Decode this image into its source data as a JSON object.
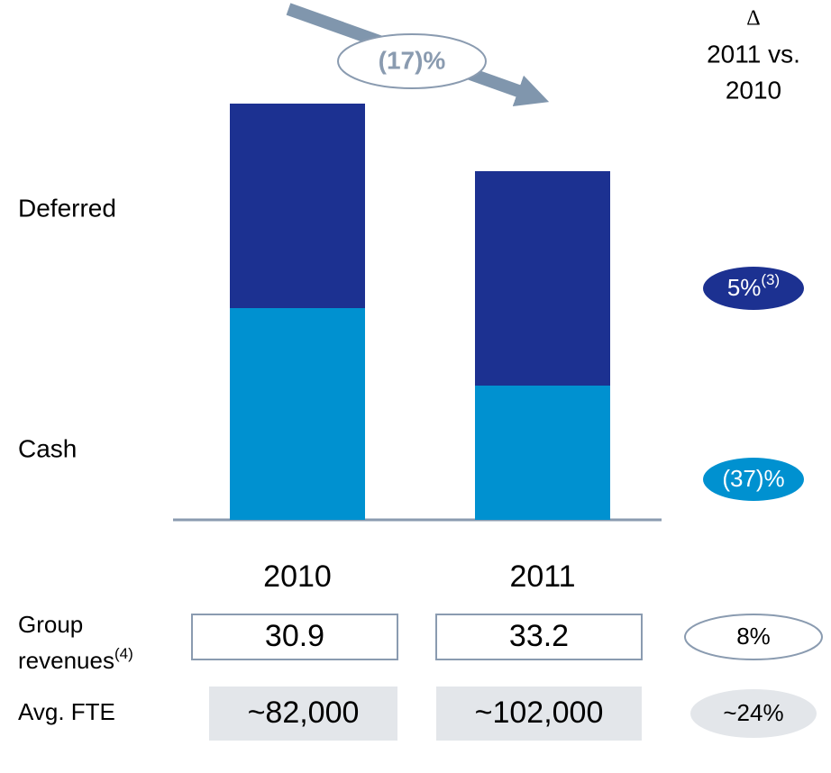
{
  "chart_data": {
    "type": "stacked_bar",
    "categories": [
      "2010",
      "2011"
    ],
    "series": [
      {
        "name": "Cash",
        "color": "#0091d0",
        "values": [
          235,
          149
        ],
        "change": "(37)%"
      },
      {
        "name": "Deferred",
        "color": "#1c3191",
        "values": [
          227,
          238
        ],
        "change": "5%",
        "change_note": "(3)"
      }
    ],
    "ylim": [
      0,
      470
    ],
    "annotation": "(17)%",
    "delta_header": [
      "Δ",
      "2011 vs.",
      "2010"
    ],
    "rows": [
      {
        "label": [
          "Group",
          "revenues"
        ],
        "label_note": "(4)",
        "values": [
          "30.9",
          "33.2"
        ],
        "change": "8%"
      },
      {
        "label": [
          "Avg. FTE"
        ],
        "values": [
          "~82,000",
          "~102,000"
        ],
        "change": "~24%"
      }
    ]
  }
}
